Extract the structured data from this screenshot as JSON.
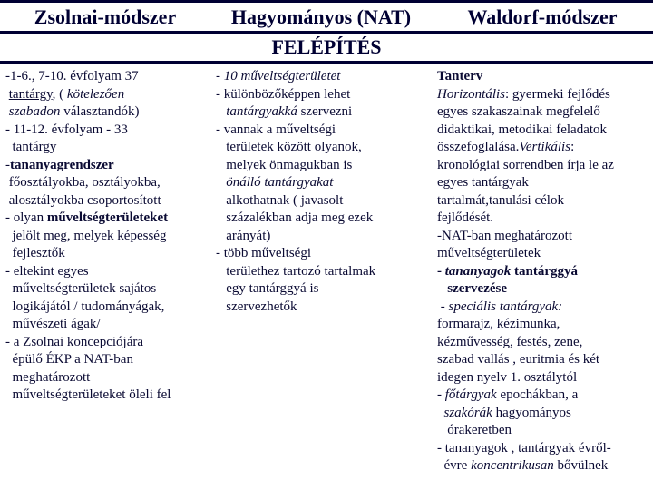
{
  "header": {
    "col1": "Zsolnai-módszer",
    "col2": "Hagyományos  (NAT)",
    "col3": "Waldorf-módszer"
  },
  "section_title": "FELÉPÍTÉS",
  "body": {
    "col1_html": "-1-6., 7-10. évfolyam 37<br>&nbsp;<u>tantárgy</u>, ( <i>kötelezően<br>&nbsp;szabadon</i> választandók)<br>- 11-12. évfolyam - 33<br>&nbsp;&nbsp;tantárgy<br>-<b>tananyagrendszer</b><br>&nbsp;főosztályokba, osztályokba,<br>&nbsp;alosztályokba csoportosított<br>- olyan <b>műveltségterületeket</b><br>&nbsp;&nbsp;jelölt meg, melyek képesség<br>&nbsp;&nbsp;fejlesztők<br>- eltekint egyes<br>&nbsp;&nbsp;műveltségterületek sajátos<br>&nbsp;&nbsp;logikájától / tudományágak,<br>&nbsp;&nbsp;művészeti ágak/<br>- a Zsolnai koncepciójára<br>&nbsp;&nbsp;épülő ÉKP a NAT-ban<br>&nbsp;&nbsp;meghatározott<br>&nbsp;&nbsp;műveltségterületeket öleli fel",
    "col2_html": "- <i>10 műveltségterületet</i><br>- különbözőképpen lehet<br>&nbsp;&nbsp;&nbsp;<i>tantárgyakká</i> szervezni<br>- vannak a műveltségi<br>&nbsp;&nbsp;&nbsp;területek között olyanok,<br>&nbsp;&nbsp;&nbsp;melyek önmagukban is<br>&nbsp;&nbsp;&nbsp;<i>önálló tantárgyakat</i><br>&nbsp;&nbsp;&nbsp;alkothatnak ( javasolt<br>&nbsp;&nbsp;&nbsp;százalékban adja meg ezek<br>&nbsp;&nbsp;&nbsp;arányát)<br>- több műveltségi<br>&nbsp;&nbsp;&nbsp;területhez tartozó tartalmak<br>&nbsp;&nbsp;&nbsp;egy tantárggyá is<br>&nbsp;&nbsp;&nbsp;szervezhetők",
    "col3_html": "<b>Tanterv</b><br><i>Horizontális</i>: gyermeki fejlődés<br>egyes szakaszainak megfelelő<br>didaktikai, metodikai feladatok<br>összefoglalása.<i>Vertikális</i>:<br>kronológiai sorrendben írja le az<br>egyes tantárgyak<br>tartalmát,tanulási célok<br>fejlődését.<br>-NAT-ban meghatározott<br>műveltségterületek<br><b>- <i>tananyagok</i> tantárggyá<br>&nbsp;&nbsp;&nbsp;szervezése</b><br>&nbsp;- <i>speciális tantárgyak:</i><br>formarajz, kézimunka,<br>kézművesség, festés, zene,<br>szabad vallás , euritmia és két<br>idegen nyelv 1. osztálytól<br>- <i>főtárgyak</i> epochákban, a<br>&nbsp;&nbsp;<i>szakórák</i> hagyományos<br>&nbsp;&nbsp;&nbsp;órakeretben<br>- tananyagok , tantárgyak évről-<br>&nbsp;&nbsp;évre <i>koncentrikusan</i> bővülnek"
  },
  "colors": {
    "border": "#000033",
    "text": "#0a0a33",
    "background": "#ffffff"
  }
}
